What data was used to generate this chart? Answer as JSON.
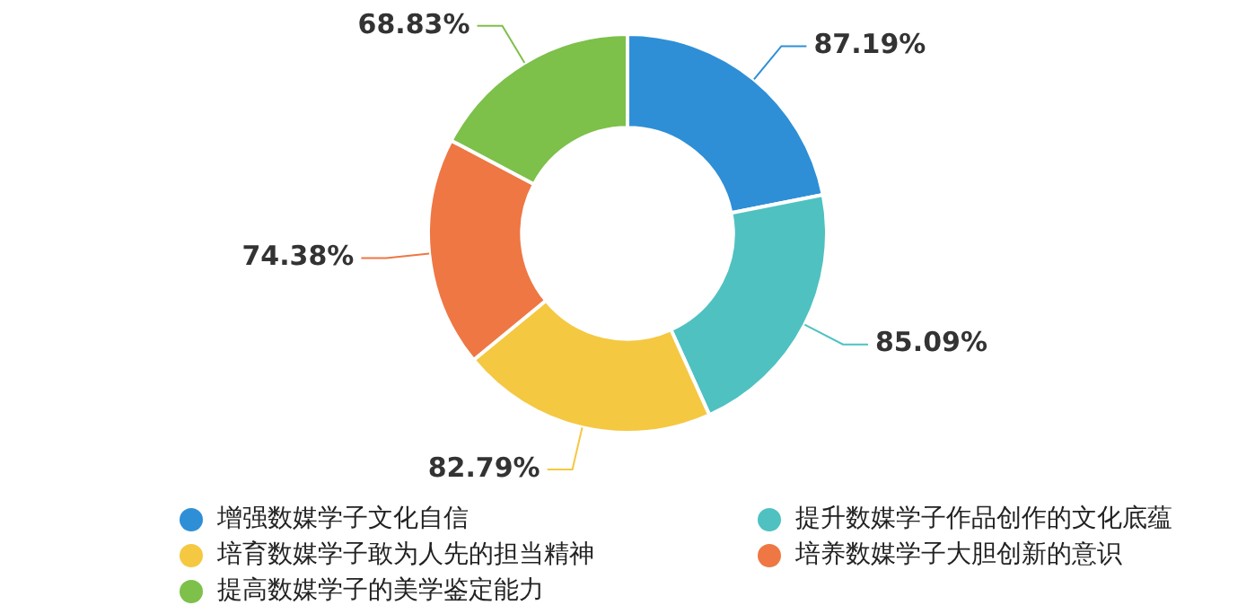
{
  "chart_data": {
    "type": "donut",
    "categories": [
      "增强数媒学子文化自信",
      "提升数媒学子作品创作的文化底蕴",
      "培育数媒学子敢为人先的担当精神",
      "培养数媒学子大胆创新的意识",
      "提高数媒学子的美学鉴定能力"
    ],
    "values": [
      87.19,
      85.09,
      82.79,
      74.38,
      68.83
    ],
    "colors": [
      "#2e8fd6",
      "#4fc1c1",
      "#f5c842",
      "#ee7744",
      "#7dc04a"
    ],
    "value_labels": [
      "87.19%",
      "85.09%",
      "82.79%",
      "74.38%",
      "68.83%"
    ],
    "legend": "bottom"
  }
}
